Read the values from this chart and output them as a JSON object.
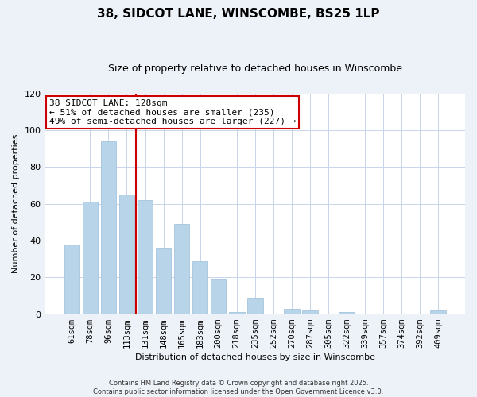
{
  "title": "38, SIDCOT LANE, WINSCOMBE, BS25 1LP",
  "subtitle": "Size of property relative to detached houses in Winscombe",
  "xlabel": "Distribution of detached houses by size in Winscombe",
  "ylabel": "Number of detached properties",
  "bar_labels": [
    "61sqm",
    "78sqm",
    "96sqm",
    "113sqm",
    "131sqm",
    "148sqm",
    "165sqm",
    "183sqm",
    "200sqm",
    "218sqm",
    "235sqm",
    "252sqm",
    "270sqm",
    "287sqm",
    "305sqm",
    "322sqm",
    "339sqm",
    "357sqm",
    "374sqm",
    "392sqm",
    "409sqm"
  ],
  "bar_values": [
    38,
    61,
    94,
    65,
    62,
    36,
    49,
    29,
    19,
    1,
    9,
    0,
    3,
    2,
    0,
    1,
    0,
    0,
    0,
    0,
    2
  ],
  "bar_color": "#b8d4e8",
  "bar_edge_color": "#9abdd8",
  "vline_color": "#cc0000",
  "ylim": [
    0,
    120
  ],
  "yticks": [
    0,
    20,
    40,
    60,
    80,
    100,
    120
  ],
  "vline_index": 3.5,
  "ann_line1": "38 SIDCOT LANE: 128sqm",
  "ann_line2": "← 51% of detached houses are smaller (235)",
  "ann_line3": "49% of semi-detached houses are larger (227) →",
  "footnote1": "Contains HM Land Registry data © Crown copyright and database right 2025.",
  "footnote2": "Contains public sector information licensed under the Open Government Licence v3.0.",
  "bg_color": "#edf2f9",
  "plot_bg_color": "#ffffff",
  "grid_color": "#c8d4e8",
  "title_fontsize": 11,
  "subtitle_fontsize": 9,
  "axis_label_fontsize": 8,
  "tick_fontsize": 7.5,
  "ann_fontsize": 8,
  "footnote_fontsize": 6
}
